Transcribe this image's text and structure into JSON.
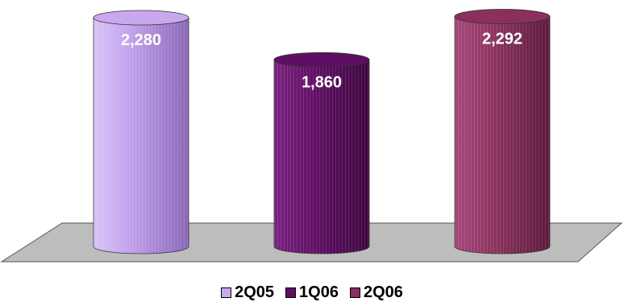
{
  "chart_data": {
    "type": "bar",
    "style": "3d-cylinder",
    "categories": [
      "2Q05",
      "1Q06",
      "2Q06"
    ],
    "values": [
      2280,
      1860,
      2292
    ],
    "value_labels": [
      "2,280",
      "1,860",
      "2,292"
    ],
    "colors": [
      "#c9a8ef",
      "#5e0f63",
      "#8a2f5e"
    ],
    "legend": {
      "position": "bottom",
      "entries": [
        "2Q05",
        "1Q06",
        "2Q06"
      ]
    },
    "grid": false,
    "title": "",
    "xlabel": "",
    "ylabel": ""
  }
}
